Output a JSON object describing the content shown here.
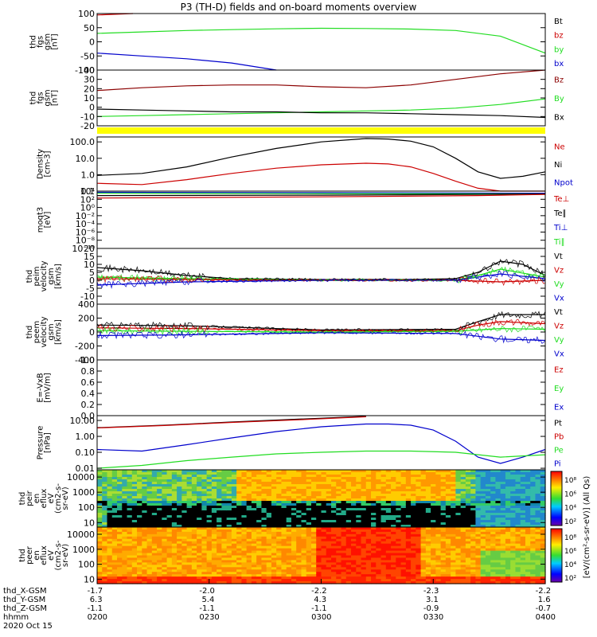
{
  "title": "P3 (TH-D) fields and on-board moments overview",
  "colors": {
    "black": "#000000",
    "red": "#cc0000",
    "green": "#22dd22",
    "blue": "#0000cc",
    "yellow": "#ffff00",
    "darkred": "#8b0000"
  },
  "chart_data": [
    {
      "name": "fgs-gsm-1",
      "type": "line",
      "ylabel_lines": [
        "thd",
        "fgs",
        "gsm",
        "[nT]"
      ],
      "ylim": [
        -100,
        100
      ],
      "yticks": [
        -100,
        -50,
        0,
        50,
        100
      ],
      "legend": [
        {
          "label": "Bt",
          "color": "#000000"
        },
        {
          "label": "bz",
          "color": "#cc0000"
        },
        {
          "label": "by",
          "color": "#22dd22"
        },
        {
          "label": "bx",
          "color": "#0000cc"
        }
      ],
      "series": [
        {
          "color": "#22dd22",
          "x": [
            0,
            0.1,
            0.2,
            0.3,
            0.4,
            0.5,
            0.6,
            0.7,
            0.8,
            0.9,
            1.0
          ],
          "y": [
            30,
            35,
            40,
            43,
            46,
            48,
            47,
            45,
            40,
            20,
            -40
          ]
        },
        {
          "color": "#0000cc",
          "x": [
            0,
            0.1,
            0.2,
            0.3,
            0.4
          ],
          "y": [
            -40,
            -50,
            -60,
            -75,
            -100
          ]
        },
        {
          "color": "#cc0000",
          "x": [
            0,
            0.08
          ],
          "y": [
            95,
            100
          ]
        }
      ]
    },
    {
      "name": "fgs-gsm-2",
      "type": "line",
      "ylabel_lines": [
        "thd",
        "fgs",
        "gsm",
        "[nT]"
      ],
      "ylim": [
        -20,
        40
      ],
      "yticks": [
        -20,
        -10,
        0,
        10,
        20,
        30,
        40
      ],
      "legend": [
        {
          "label": "Bz",
          "color": "#8b0000"
        },
        {
          "label": "By",
          "color": "#22dd22"
        },
        {
          "label": "Bx",
          "color": "#000000"
        }
      ],
      "series": [
        {
          "color": "#8b0000",
          "x": [
            0,
            0.1,
            0.2,
            0.3,
            0.4,
            0.5,
            0.6,
            0.7,
            0.8,
            0.9,
            1.0
          ],
          "y": [
            18,
            21,
            23,
            24,
            24,
            22,
            21,
            24,
            30,
            36,
            40
          ]
        },
        {
          "color": "#22dd22",
          "x": [
            0,
            0.1,
            0.2,
            0.3,
            0.4,
            0.5,
            0.6,
            0.7,
            0.8,
            0.9,
            1.0
          ],
          "y": [
            -10,
            -9,
            -8,
            -7,
            -6,
            -5,
            -4,
            -3,
            -1,
            3,
            9
          ]
        },
        {
          "color": "#000000",
          "x": [
            0,
            0.1,
            0.2,
            0.3,
            0.4,
            0.5,
            0.6,
            0.7,
            0.8,
            0.9,
            1.0
          ],
          "y": [
            -2,
            -3,
            -4,
            -5,
            -5,
            -6,
            -6,
            -7,
            -8,
            -9,
            -11
          ]
        }
      ]
    },
    {
      "name": "density",
      "type": "line",
      "log": true,
      "ylabel_lines": [
        "Density",
        "[cm-3]"
      ],
      "ylim": [
        0.1,
        200
      ],
      "yticks": [
        0.1,
        1.0,
        10.0,
        100.0
      ],
      "ytick_labels": [
        "0.1",
        "1.0",
        "10.0",
        "100.0"
      ],
      "legend": [
        {
          "label": "Ne",
          "color": "#cc0000"
        },
        {
          "label": "Ni",
          "color": "#000000"
        },
        {
          "label": "Npot",
          "color": "#0000cc"
        }
      ],
      "series": [
        {
          "color": "#000000",
          "x": [
            0,
            0.1,
            0.2,
            0.3,
            0.4,
            0.5,
            0.6,
            0.65,
            0.7,
            0.75,
            0.8,
            0.85,
            0.9,
            0.95,
            1.0
          ],
          "y": [
            0.9,
            1.2,
            3,
            12,
            40,
            100,
            160,
            150,
            110,
            50,
            10,
            1.5,
            0.6,
            0.8,
            1.5
          ]
        },
        {
          "color": "#cc0000",
          "x": [
            0,
            0.1,
            0.2,
            0.3,
            0.4,
            0.5,
            0.6,
            0.65,
            0.7,
            0.75,
            0.8,
            0.85,
            0.9,
            1.0
          ],
          "y": [
            0.3,
            0.25,
            0.5,
            1.2,
            2.5,
            4,
            5,
            4.5,
            3,
            1.2,
            0.4,
            0.15,
            0.1,
            0.1
          ]
        }
      ]
    },
    {
      "name": "temperature",
      "type": "line",
      "log": true,
      "ylabel_lines": [
        "moqt3",
        "[eV]"
      ],
      "ylim": [
        1e-10,
        10000.0
      ],
      "yticks": [
        1e-10,
        1e-08,
        1e-06,
        0.0001,
        0.01,
        1.0,
        100.0,
        10000.0
      ],
      "ytick_labels": [
        "10⁻¹⁰",
        "10⁻⁸",
        "10⁻⁶",
        "10⁻⁴",
        "10⁻²",
        "10⁰",
        "10²",
        "10⁴"
      ],
      "legend": [
        {
          "label": "Te⊥",
          "color": "#cc0000"
        },
        {
          "label": "Te∥",
          "color": "#000000"
        },
        {
          "label": "Ti⊥",
          "color": "#0000cc"
        },
        {
          "label": "Ti∥",
          "color": "#22dd22"
        }
      ],
      "series": [
        {
          "color": "#0000cc",
          "x": [
            0,
            0.5,
            1.0
          ],
          "y": [
            5000,
            4000,
            3000
          ]
        },
        {
          "color": "#22dd22",
          "x": [
            0,
            0.5,
            1.0
          ],
          "y": [
            3000,
            2500,
            2000
          ]
        },
        {
          "color": "#000000",
          "x": [
            0,
            0.5,
            0.85,
            1.0
          ],
          "y": [
            800,
            1000,
            1500,
            2000
          ]
        },
        {
          "color": "#cc0000",
          "x": [
            0,
            0.5,
            0.85,
            1.0
          ],
          "y": [
            200,
            400,
            800,
            1500
          ]
        }
      ]
    },
    {
      "name": "peim-velocity",
      "type": "line",
      "ylabel_lines": [
        "thd",
        "peim",
        "velocity",
        "gsm",
        "[km/s]"
      ],
      "ylim": [
        -15,
        20
      ],
      "yticks": [
        -10,
        -5,
        0,
        5,
        10,
        15,
        20
      ],
      "legend": [
        {
          "label": "Vt",
          "color": "#000000"
        },
        {
          "label": "Vz",
          "color": "#cc0000"
        },
        {
          "label": "Vy",
          "color": "#22dd22"
        },
        {
          "label": "Vx",
          "color": "#0000cc"
        }
      ],
      "series": [
        {
          "color": "#000000",
          "x": [
            0,
            0.1,
            0.2,
            0.3,
            0.5,
            0.7,
            0.8,
            0.85,
            0.9,
            0.95,
            1.0
          ],
          "y": [
            8,
            6,
            3,
            1,
            0.5,
            0.5,
            1,
            5,
            12,
            10,
            3
          ]
        },
        {
          "color": "#22dd22",
          "x": [
            0,
            0.2,
            0.5,
            0.8,
            0.85,
            0.9,
            1.0
          ],
          "y": [
            2,
            1,
            0,
            0,
            3,
            7,
            2
          ]
        },
        {
          "color": "#cc0000",
          "x": [
            0,
            0.2,
            0.5,
            0.8,
            0.9,
            1.0
          ],
          "y": [
            1,
            0.5,
            0,
            0,
            -1,
            0
          ]
        },
        {
          "color": "#0000cc",
          "x": [
            0,
            0.2,
            0.5,
            0.8,
            0.9,
            1.0
          ],
          "y": [
            -3,
            -1,
            0,
            0,
            4,
            1
          ]
        }
      ]
    },
    {
      "name": "peem-velocity",
      "type": "line",
      "ylabel_lines": [
        "thd",
        "peem",
        "velocity",
        "gsm",
        "[km/s]"
      ],
      "ylim": [
        -400,
        400
      ],
      "yticks": [
        -400,
        -200,
        0,
        200,
        400
      ],
      "legend": [
        {
          "label": "Vt",
          "color": "#000000"
        },
        {
          "label": "Vz",
          "color": "#cc0000"
        },
        {
          "label": "Vy",
          "color": "#22dd22"
        },
        {
          "label": "Vx",
          "color": "#0000cc"
        }
      ],
      "series": [
        {
          "color": "#000000",
          "x": [
            0,
            0.2,
            0.5,
            0.8,
            0.85,
            0.9,
            1.0
          ],
          "y": [
            100,
            90,
            30,
            40,
            150,
            250,
            250
          ]
        },
        {
          "color": "#cc0000",
          "x": [
            0,
            0.2,
            0.5,
            0.8,
            0.85,
            0.9,
            1.0
          ],
          "y": [
            60,
            50,
            20,
            20,
            100,
            150,
            120
          ]
        },
        {
          "color": "#22dd22",
          "x": [
            0,
            0.2,
            0.5,
            0.8,
            0.9,
            1.0
          ],
          "y": [
            20,
            10,
            0,
            10,
            50,
            40
          ]
        },
        {
          "color": "#0000cc",
          "x": [
            0,
            0.2,
            0.5,
            0.8,
            0.9,
            1.0
          ],
          "y": [
            -50,
            -40,
            -10,
            -20,
            -100,
            -120
          ]
        }
      ]
    },
    {
      "name": "efield",
      "type": "line",
      "ylabel_lines": [
        "E=-VxB",
        "[mV/m]"
      ],
      "ylim": [
        0,
        1
      ],
      "yticks": [
        0.0,
        0.2,
        0.4,
        0.6,
        0.8,
        1.0
      ],
      "ytick_labels": [
        "0.0",
        "0.2",
        "0.4",
        "0.6",
        "0.8",
        "1.0"
      ],
      "legend": [
        {
          "label": "Ez",
          "color": "#cc0000"
        },
        {
          "label": "Ey",
          "color": "#22dd22"
        },
        {
          "label": "Ex",
          "color": "#0000cc"
        }
      ],
      "series": []
    },
    {
      "name": "pressure",
      "type": "line",
      "log": true,
      "ylabel_lines": [
        "Pressure",
        "[nPa]"
      ],
      "ylim": [
        0.008,
        20
      ],
      "yticks": [
        0.01,
        0.1,
        1.0,
        10.0
      ],
      "ytick_labels": [
        "0.01",
        "0.10",
        "1.00",
        "10.00"
      ],
      "legend": [
        {
          "label": "Pt",
          "color": "#000000"
        },
        {
          "label": "Pb",
          "color": "#cc0000"
        },
        {
          "label": "Pe",
          "color": "#22dd22"
        },
        {
          "label": "Pi",
          "color": "#0000cc"
        }
      ],
      "series": [
        {
          "color": "#000000",
          "x": [
            0,
            0.15,
            0.3,
            0.45,
            0.6
          ],
          "y": [
            3.5,
            5,
            8,
            12,
            18
          ]
        },
        {
          "color": "#cc0000",
          "x": [
            0,
            0.15,
            0.3,
            0.45,
            0.6
          ],
          "y": [
            3.4,
            4.8,
            7.5,
            11,
            17
          ]
        },
        {
          "color": "#0000cc",
          "x": [
            0,
            0.1,
            0.2,
            0.3,
            0.4,
            0.5,
            0.6,
            0.65,
            0.7,
            0.75,
            0.8,
            0.85,
            0.9,
            0.95,
            1.0
          ],
          "y": [
            0.15,
            0.12,
            0.3,
            0.8,
            2,
            4,
            6,
            6,
            5,
            2.5,
            0.5,
            0.05,
            0.02,
            0.05,
            0.15
          ]
        },
        {
          "color": "#22dd22",
          "x": [
            0,
            0.1,
            0.2,
            0.3,
            0.4,
            0.5,
            0.6,
            0.7,
            0.8,
            0.9,
            1.0
          ],
          "y": [
            0.01,
            0.015,
            0.03,
            0.05,
            0.08,
            0.1,
            0.12,
            0.12,
            0.1,
            0.05,
            0.07
          ]
        }
      ]
    },
    {
      "name": "peir-spectrogram",
      "type": "heatmap",
      "log": true,
      "ylabel_lines": [
        "thd",
        "peir",
        "en",
        "eflux",
        "eV",
        "(cm2-s-",
        "sr-eV)"
      ],
      "ylim": [
        5,
        30000
      ],
      "yticks": [
        10,
        100,
        1000,
        10000
      ],
      "ytick_labels": [
        "10",
        "100",
        "1000",
        "10000"
      ]
    },
    {
      "name": "peer-spectrogram",
      "type": "heatmap",
      "log": true,
      "ylabel_lines": [
        "thd",
        "peer",
        "en",
        "eflux",
        "eV",
        "(cm2-s-",
        "sr-eV)"
      ],
      "ylim": [
        5,
        30000
      ],
      "yticks": [
        10,
        100,
        1000,
        10000
      ],
      "ytick_labels": [
        "10",
        "100",
        "1000",
        "10000"
      ]
    }
  ],
  "colorbars": [
    {
      "labels": [
        "10⁸",
        "10⁶",
        "10⁴",
        "10²"
      ],
      "unit": "[eV/(cm²-s-sr-eV)] (All Qs)"
    },
    {
      "labels": [
        "10⁸",
        "10⁶",
        "10⁴",
        "10²"
      ],
      "unit": "[eV/(cm²-s-sr-eV)]"
    }
  ],
  "xaxis": {
    "rows": [
      {
        "label": "thd_X-GSM",
        "values": [
          "-1.7",
          "-2.0",
          "-2.2",
          "-2.3",
          "-2.2"
        ]
      },
      {
        "label": "thd_Y-GSM",
        "values": [
          "6.3",
          "5.4",
          "4.3",
          "3.1",
          "1.6"
        ]
      },
      {
        "label": "thd_Z-GSM",
        "values": [
          "-1.1",
          "-1.1",
          "-1.1",
          "-0.9",
          "-0.7"
        ]
      },
      {
        "label": "hhmm",
        "values": [
          "0200",
          "0230",
          "0300",
          "0330",
          "0400"
        ]
      }
    ],
    "date": "2020 Oct 15"
  }
}
